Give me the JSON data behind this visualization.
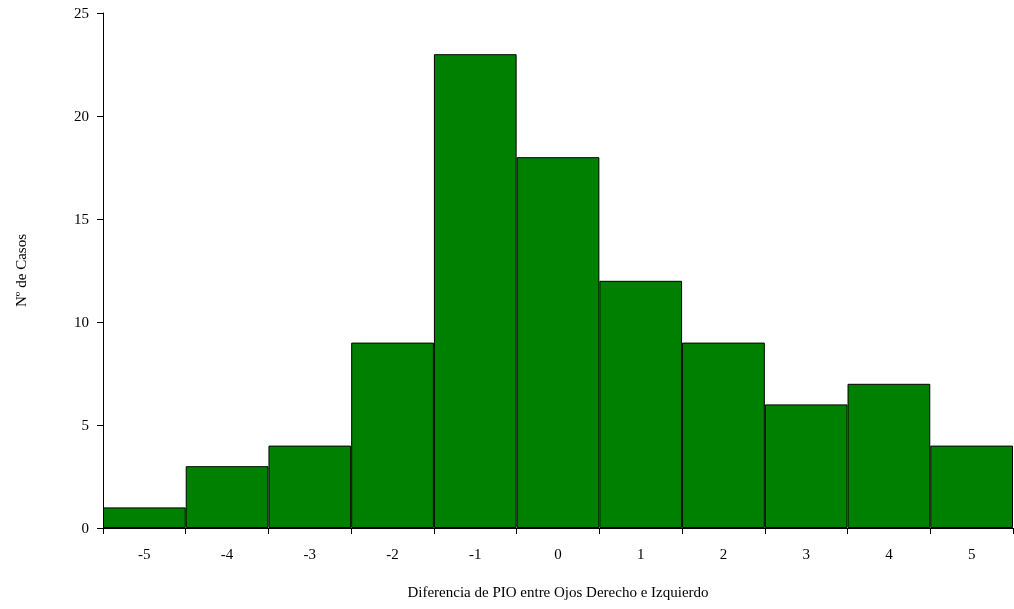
{
  "chart_data": {
    "type": "bar",
    "xlabel": "Diferencia de PIO entre Ojos Derecho e Izquierdo",
    "ylabel": "Nº de Casos",
    "categories": [
      "-5",
      "-4",
      "-3",
      "-2",
      "-1",
      "0",
      "1",
      "2",
      "3",
      "4",
      "5"
    ],
    "values": [
      1,
      3,
      4,
      9,
      23,
      18,
      12,
      9,
      6,
      7,
      4
    ],
    "color": "#008000",
    "ylim": [
      0,
      25
    ],
    "yticks": [
      0,
      5,
      10,
      15,
      20,
      25
    ],
    "grid": false
  }
}
